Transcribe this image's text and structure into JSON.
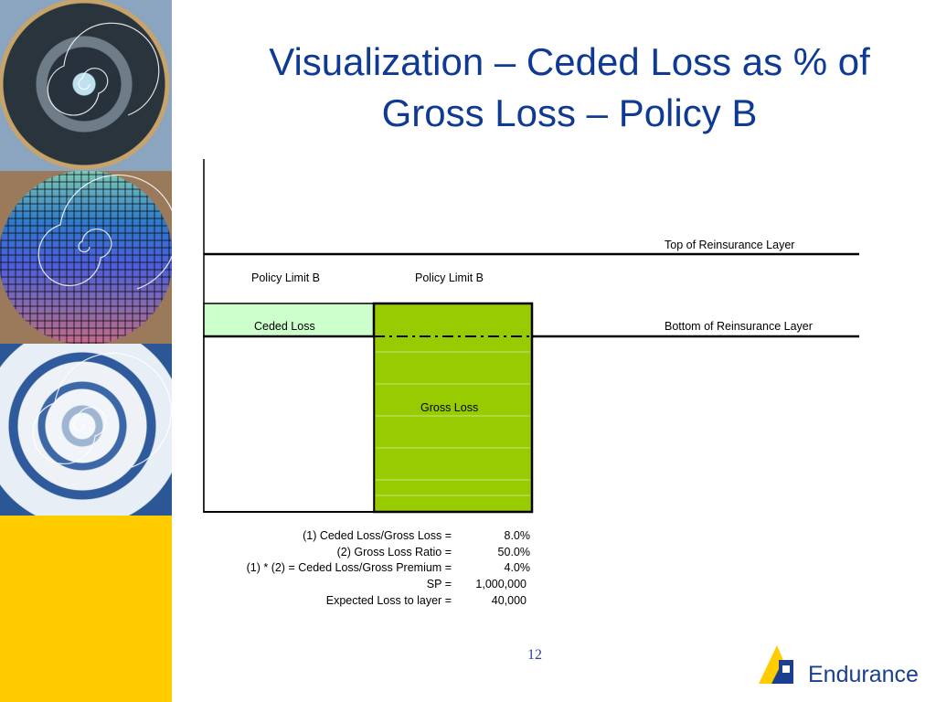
{
  "slide": {
    "title_line1": "Visualization – Ceded Loss as % of",
    "title_line2": "Gross Loss – Policy B",
    "page_number": "12"
  },
  "diagram": {
    "top_layer_label": "Top of Reinsurance Layer",
    "bottom_layer_label": "Bottom of Reinsurance Layer",
    "policy_limit_left": "Policy Limit B",
    "policy_limit_right": "Policy Limit B",
    "ceded_loss_label": "Ceded Loss",
    "gross_loss_label": "Gross Loss",
    "colors": {
      "ceded_fill": "#ccffcc",
      "gross_fill": "#99cc00",
      "title": "#0f3a93",
      "accent_gold": "#ffcc00"
    }
  },
  "calculations": [
    {
      "label": "(1) Ceded Loss/Gross Loss =",
      "value": "8.0%"
    },
    {
      "label": "(2) Gross Loss Ratio =",
      "value": "50.0%"
    },
    {
      "label": "(1) * (2) = Ceded Loss/Gross Premium =",
      "value": "4.0%"
    },
    {
      "label": "SP =",
      "value": "1,000,000"
    },
    {
      "label": "Expected Loss to layer =",
      "value": "40,000"
    }
  ],
  "logo": {
    "icon": "endurance-logo-icon",
    "text": "Endurance"
  }
}
